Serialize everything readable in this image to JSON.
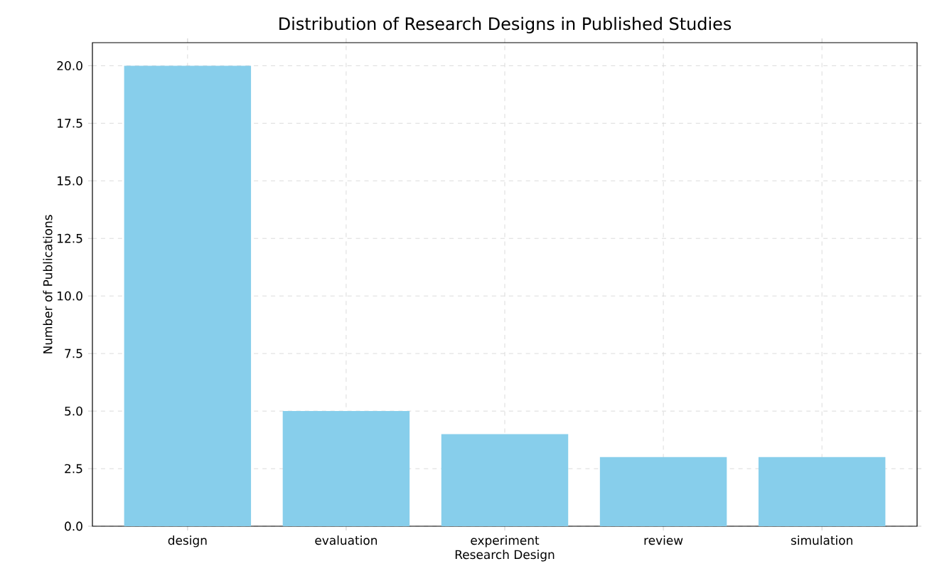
{
  "chart_data": {
    "type": "bar",
    "title": "Distribution of Research Designs in Published Studies",
    "xlabel": "Research Design",
    "ylabel": "Number of Publications",
    "categories": [
      "design",
      "evaluation",
      "experiment",
      "review",
      "simulation"
    ],
    "values": [
      20,
      5,
      4,
      3,
      3
    ],
    "color": "#87ceeb",
    "ylim": [
      0,
      21
    ],
    "yticks": [
      {
        "value": 0,
        "label": "0.0"
      },
      {
        "value": 2.5,
        "label": "2.5"
      },
      {
        "value": 5,
        "label": "5.0"
      },
      {
        "value": 7.5,
        "label": "7.5"
      },
      {
        "value": 10,
        "label": "10.0"
      },
      {
        "value": 12.5,
        "label": "12.5"
      },
      {
        "value": 15,
        "label": "15.0"
      },
      {
        "value": 17.5,
        "label": "17.5"
      },
      {
        "value": 20,
        "label": "20.0"
      }
    ],
    "grid": true
  }
}
